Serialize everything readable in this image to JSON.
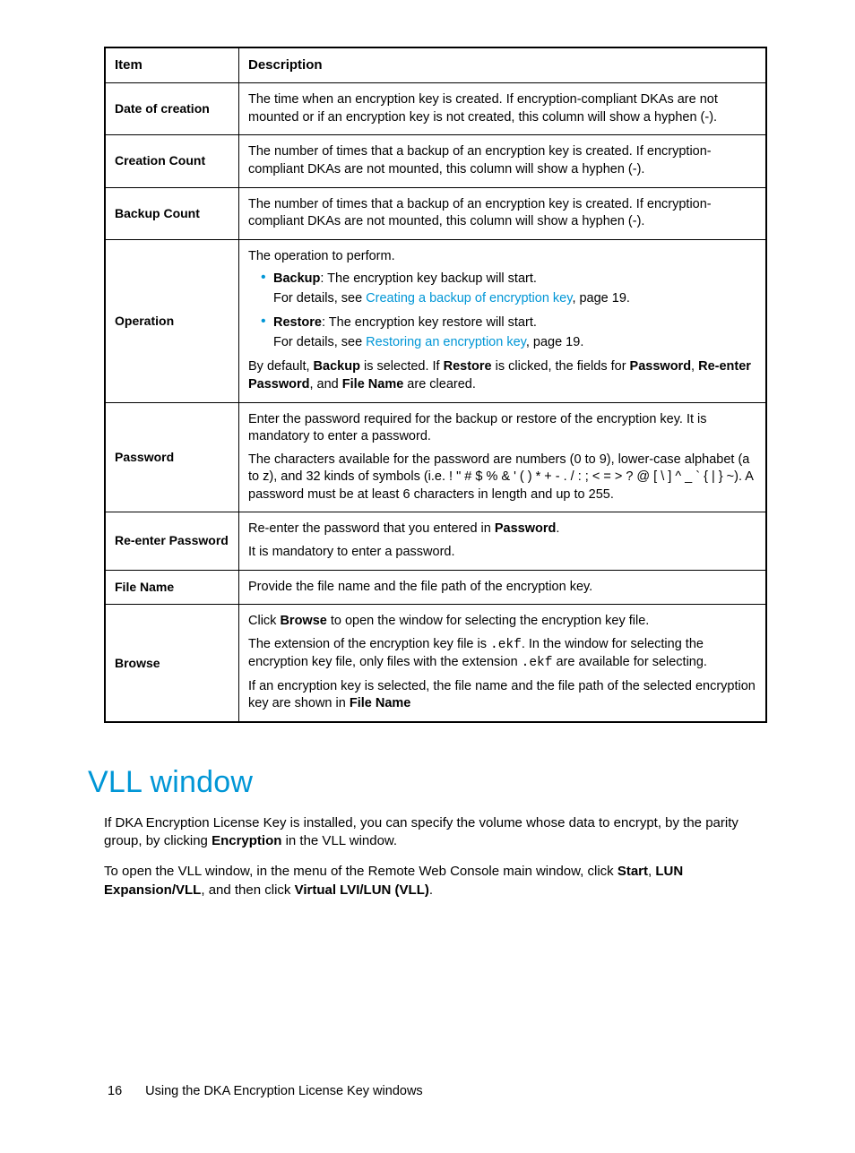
{
  "table": {
    "header": {
      "item": "Item",
      "description": "Description"
    },
    "rows": {
      "date_of_creation": {
        "item": "Date of creation",
        "desc": "The time when an encryption key is created. If encryption-compliant DKAs are not mounted or if an encryption key is not created, this column will show a hyphen (-)."
      },
      "creation_count": {
        "item": "Creation Count",
        "desc": "The number of times that a backup of an encryption key is created. If encryption-compliant DKAs are not mounted, this column will show a hyphen (-)."
      },
      "backup_count": {
        "item": "Backup Count",
        "desc": "The number of times that a backup of an encryption key is created. If encryption-compliant DKAs are not mounted, this column will show a hyphen (-)."
      },
      "operation": {
        "item": "Operation",
        "intro": "The operation to perform.",
        "backup_label": "Backup",
        "backup_text": ": The encryption key backup will start.",
        "backup_detail_pre": "For details, see ",
        "backup_link": "Creating a backup of encryption key",
        "backup_detail_post": ", page 19.",
        "restore_label": "Restore",
        "restore_text": ": The encryption key restore will start.",
        "restore_detail_pre": "For details, see ",
        "restore_link": "Restoring an encryption key",
        "restore_detail_post": ", page 19.",
        "trailer_1": "By default, ",
        "trailer_b1": "Backup",
        "trailer_2": " is selected. If ",
        "trailer_b2": "Restore",
        "trailer_3": " is clicked, the fields for ",
        "trailer_b3": "Password",
        "trailer_4": ", ",
        "trailer_b4": "Re-enter Password",
        "trailer_5": ", and ",
        "trailer_b5": "File Name",
        "trailer_6": " are cleared."
      },
      "password": {
        "item": "Password",
        "p1": "Enter the password required for the backup or restore of the encryption key. It is mandatory to enter a password.",
        "p2": "The characters available for the password are numbers (0 to 9), lower-case alphabet (a to z), and 32 kinds of symbols (i.e. ! \" # $ % & ' ( ) * + - . / : ; < = > ? @ [ \\ ] ^ _ ` { | } ~). A password must be at least 6 characters in length and up to 255."
      },
      "reenter": {
        "item": "Re-enter Password",
        "p1_pre": "Re-enter the password that you entered in ",
        "p1_b": "Password",
        "p1_post": ".",
        "p2": "It is mandatory to enter a password."
      },
      "filename": {
        "item": "File Name",
        "desc": "Provide the file name and the file path of the encryption key."
      },
      "browse": {
        "item": "Browse",
        "p1_pre": "Click ",
        "p1_b": "Browse",
        "p1_post": " to open the window for selecting the encryption key file.",
        "p2_a": "The extension of the encryption key file is ",
        "p2_mono1": ".ekf",
        "p2_b": ". In the window for selecting the encryption key file, only files with the extension ",
        "p2_mono2": ".ekf",
        "p2_c": " are available for selecting.",
        "p3_a": "If an encryption key is selected, the file name and the file path of the selected encryption key are shown in ",
        "p3_b": "File Name"
      }
    }
  },
  "section": {
    "title": "VLL window",
    "para1_a": "If DKA Encryption License Key is installed, you can specify the volume whose data to encrypt, by the parity group, by clicking ",
    "para1_b": "Encryption",
    "para1_c": " in the VLL window.",
    "para2_a": "To open the VLL window, in the menu of the Remote Web Console main window, click ",
    "para2_b1": "Start",
    "para2_s1": ", ",
    "para2_b2": "LUN Expansion/VLL",
    "para2_s2": ", and then click ",
    "para2_b3": "Virtual LVI/LUN (VLL)",
    "para2_s3": "."
  },
  "footer": {
    "page": "16",
    "chapter": "Using the DKA Encryption License Key windows"
  }
}
